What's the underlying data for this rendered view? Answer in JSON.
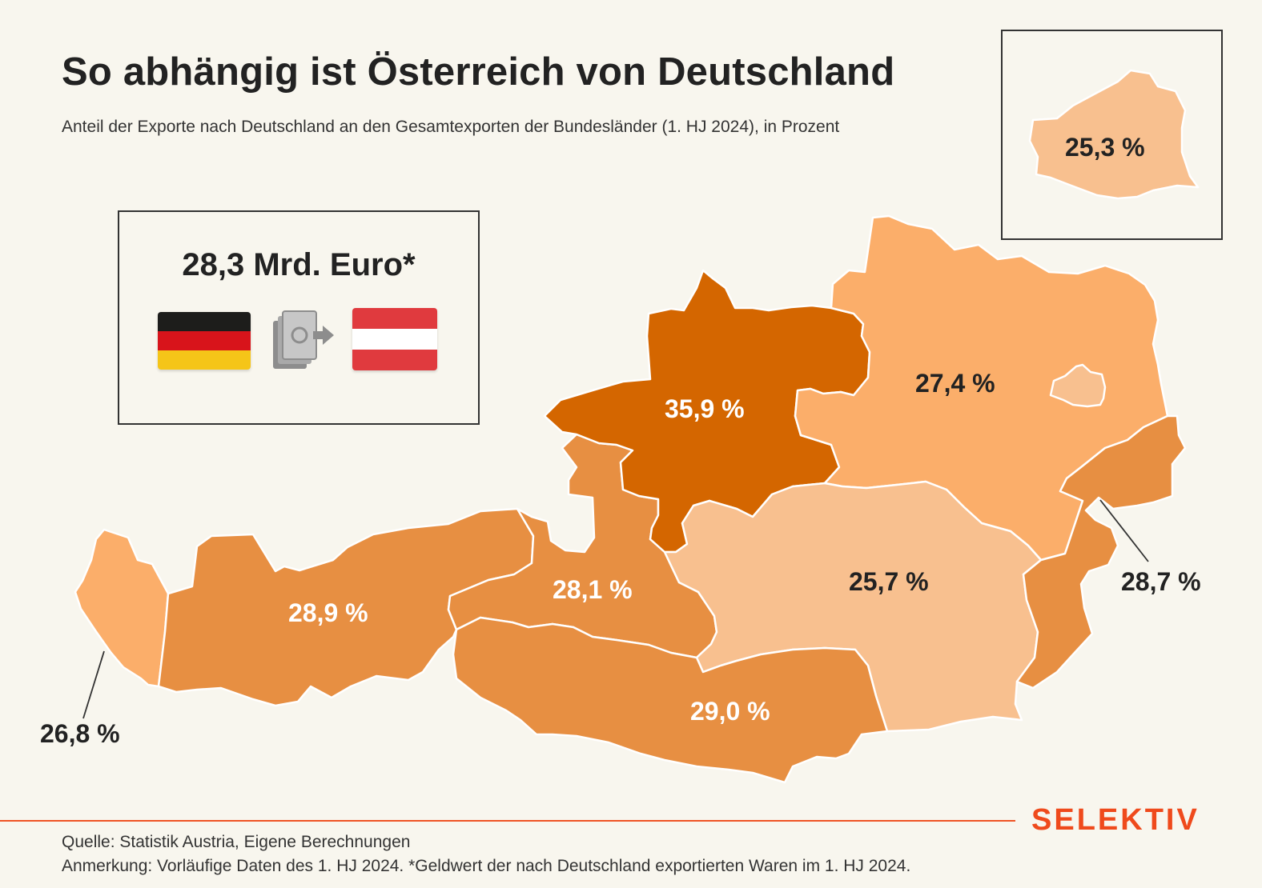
{
  "header": {
    "title": "So abhängig ist Österreich von Deutschland",
    "subtitle": "Anteil der Exporte nach Deutschland an den Gesamtexporten der Bundesländer (1. HJ 2024), in Prozent"
  },
  "info_box": {
    "amount": "28,3 Mrd. Euro*",
    "from_flag": "germany-flag-icon",
    "transfer_icon": "money-transfer-icon",
    "to_flag": "austria-flag-icon"
  },
  "regions": [
    {
      "id": "vorarlberg",
      "value": 26.8,
      "label": "26,8 %"
    },
    {
      "id": "tirol",
      "value": 28.9,
      "label": "28,9 %"
    },
    {
      "id": "salzburg",
      "value": 28.1,
      "label": "28,1 %"
    },
    {
      "id": "oberoesterreich",
      "value": 35.9,
      "label": "35,9 %"
    },
    {
      "id": "niederoesterreich",
      "value": 27.4,
      "label": "27,4 %"
    },
    {
      "id": "wien",
      "value": 25.3,
      "label": "25,3 %"
    },
    {
      "id": "steiermark",
      "value": 25.7,
      "label": "25,7 %"
    },
    {
      "id": "kaernten",
      "value": 29.0,
      "label": "29,0 %"
    },
    {
      "id": "burgenland",
      "value": 28.7,
      "label": "28,7 %"
    }
  ],
  "colors": {
    "background": "#f8f6ee",
    "level_lightest": "#f8c08f",
    "level_light": "#fbae6a",
    "level_mid": "#e78f42",
    "level_dark": "#d46600",
    "brand": "#ef4a1c"
  },
  "footer": {
    "brand": "SELEKTIV",
    "source": "Quelle: Statistik Austria, Eigene Berechnungen",
    "note": "Anmerkung: Vorläufige Daten des 1. HJ 2024. *Geldwert der nach Deutschland exportierten Waren im 1. HJ 2024."
  }
}
